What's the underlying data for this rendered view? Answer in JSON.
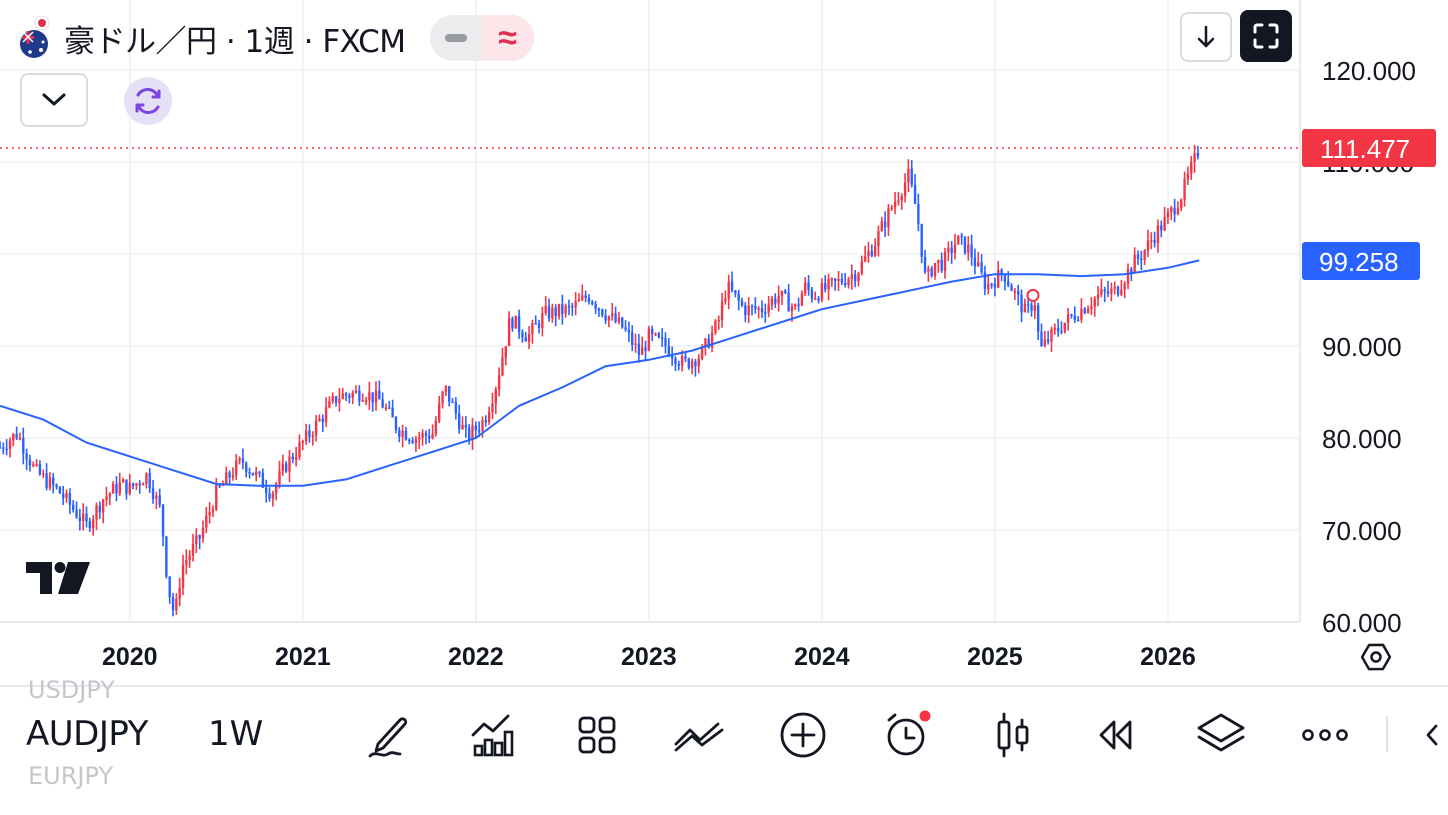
{
  "header": {
    "title": "豪ドル／円 · 1週 · FXCM",
    "flag_icon": "australia-flag-icon"
  },
  "price_labels": {
    "last_price": "111.477",
    "last_price_color": "#f23645",
    "ma_value": "99.258",
    "ma_color": "#2962ff"
  },
  "toolbar": {
    "symbol_prev": "USDJPY",
    "symbol": "AUDJPY",
    "symbol_next": "EURJPY",
    "interval": "1W",
    "icons": [
      "draw-icon",
      "indicators-icon",
      "layouts-icon",
      "compare-icon",
      "add-icon",
      "alert-icon",
      "chart-type-icon",
      "replay-icon",
      "layers-icon",
      "more-icon",
      "collapse-icon"
    ]
  },
  "chart_data": {
    "type": "candlestick",
    "symbol": "AUDJPY",
    "interval": "1W",
    "ylim": [
      60,
      120
    ],
    "y_ticks": [
      "120.000",
      "110.000",
      "90.000",
      "80.000",
      "70.000",
      "60.000"
    ],
    "x_ticks": [
      "2020",
      "2021",
      "2022",
      "2023",
      "2024",
      "2025",
      "2026"
    ],
    "x_range": [
      2019.25,
      2026.35
    ],
    "up_color": "#f23645",
    "down_color": "#2962ff",
    "last_price": 111.477,
    "price_path": [
      [
        2019.25,
        79
      ],
      [
        2019.35,
        80.5
      ],
      [
        2019.45,
        76.5
      ],
      [
        2019.6,
        74
      ],
      [
        2019.75,
        70.5
      ],
      [
        2019.85,
        73.5
      ],
      [
        2019.95,
        75
      ],
      [
        2020.0,
        74.5
      ],
      [
        2020.1,
        76
      ],
      [
        2020.18,
        72
      ],
      [
        2020.22,
        64
      ],
      [
        2020.26,
        60.5
      ],
      [
        2020.3,
        66
      ],
      [
        2020.4,
        69
      ],
      [
        2020.5,
        74
      ],
      [
        2020.6,
        76.5
      ],
      [
        2020.65,
        77.5
      ],
      [
        2020.75,
        75.5
      ],
      [
        2020.82,
        74
      ],
      [
        2020.9,
        77
      ],
      [
        2021.0,
        79.5
      ],
      [
        2021.1,
        82
      ],
      [
        2021.2,
        84.5
      ],
      [
        2021.35,
        85
      ],
      [
        2021.45,
        84
      ],
      [
        2021.55,
        81
      ],
      [
        2021.65,
        80
      ],
      [
        2021.75,
        80.5
      ],
      [
        2021.82,
        85.5
      ],
      [
        2021.9,
        82
      ],
      [
        2021.95,
        80
      ],
      [
        2022.05,
        82
      ],
      [
        2022.12,
        86
      ],
      [
        2022.2,
        93
      ],
      [
        2022.3,
        91
      ],
      [
        2022.4,
        93.5
      ],
      [
        2022.55,
        94
      ],
      [
        2022.65,
        95.5
      ],
      [
        2022.75,
        93.5
      ],
      [
        2022.85,
        92
      ],
      [
        2022.95,
        89
      ],
      [
        2023.0,
        91
      ],
      [
        2023.1,
        90
      ],
      [
        2023.2,
        88
      ],
      [
        2023.3,
        89
      ],
      [
        2023.4,
        92.5
      ],
      [
        2023.45,
        96.5
      ],
      [
        2023.55,
        94
      ],
      [
        2023.65,
        94
      ],
      [
        2023.75,
        95.5
      ],
      [
        2023.85,
        94
      ],
      [
        2023.9,
        96.5
      ],
      [
        2023.95,
        95.5
      ],
      [
        2024.1,
        97
      ],
      [
        2024.2,
        98
      ],
      [
        2024.3,
        101
      ],
      [
        2024.4,
        105
      ],
      [
        2024.5,
        108.5
      ],
      [
        2024.55,
        104.5
      ],
      [
        2024.6,
        97
      ],
      [
        2024.65,
        99
      ],
      [
        2024.7,
        99
      ],
      [
        2024.78,
        101.5
      ],
      [
        2024.85,
        100.5
      ],
      [
        2024.9,
        98.5
      ],
      [
        2024.95,
        96.5
      ],
      [
        2025.05,
        98
      ],
      [
        2025.12,
        95.5
      ],
      [
        2025.18,
        93.5
      ],
      [
        2025.23,
        95
      ],
      [
        2025.26,
        89.5
      ],
      [
        2025.32,
        91
      ],
      [
        2025.4,
        92.5
      ],
      [
        2025.5,
        94
      ],
      [
        2025.6,
        95.5
      ],
      [
        2025.7,
        96
      ],
      [
        2025.75,
        97.5
      ],
      [
        2025.8,
        99
      ],
      [
        2025.85,
        100
      ],
      [
        2025.92,
        102
      ],
      [
        2026.0,
        104
      ],
      [
        2026.08,
        106.5
      ],
      [
        2026.14,
        109.5
      ],
      [
        2026.18,
        111.5
      ]
    ],
    "moving_average": [
      [
        2019.25,
        83.5
      ],
      [
        2019.5,
        82
      ],
      [
        2019.75,
        79.5
      ],
      [
        2020.0,
        78
      ],
      [
        2020.25,
        76.5
      ],
      [
        2020.5,
        75
      ],
      [
        2020.75,
        74.8
      ],
      [
        2021.0,
        74.8
      ],
      [
        2021.25,
        75.5
      ],
      [
        2021.5,
        77
      ],
      [
        2021.75,
        78.5
      ],
      [
        2022.0,
        80
      ],
      [
        2022.25,
        83.5
      ],
      [
        2022.5,
        85.5
      ],
      [
        2022.75,
        87.8
      ],
      [
        2023.0,
        88.5
      ],
      [
        2023.25,
        89.5
      ],
      [
        2023.5,
        91
      ],
      [
        2023.75,
        92.5
      ],
      [
        2024.0,
        94
      ],
      [
        2024.25,
        95
      ],
      [
        2024.5,
        96
      ],
      [
        2024.75,
        97
      ],
      [
        2025.0,
        97.8
      ],
      [
        2025.25,
        97.8
      ],
      [
        2025.5,
        97.6
      ],
      [
        2025.75,
        97.8
      ],
      [
        2026.0,
        98.5
      ],
      [
        2026.18,
        99.3
      ]
    ]
  }
}
